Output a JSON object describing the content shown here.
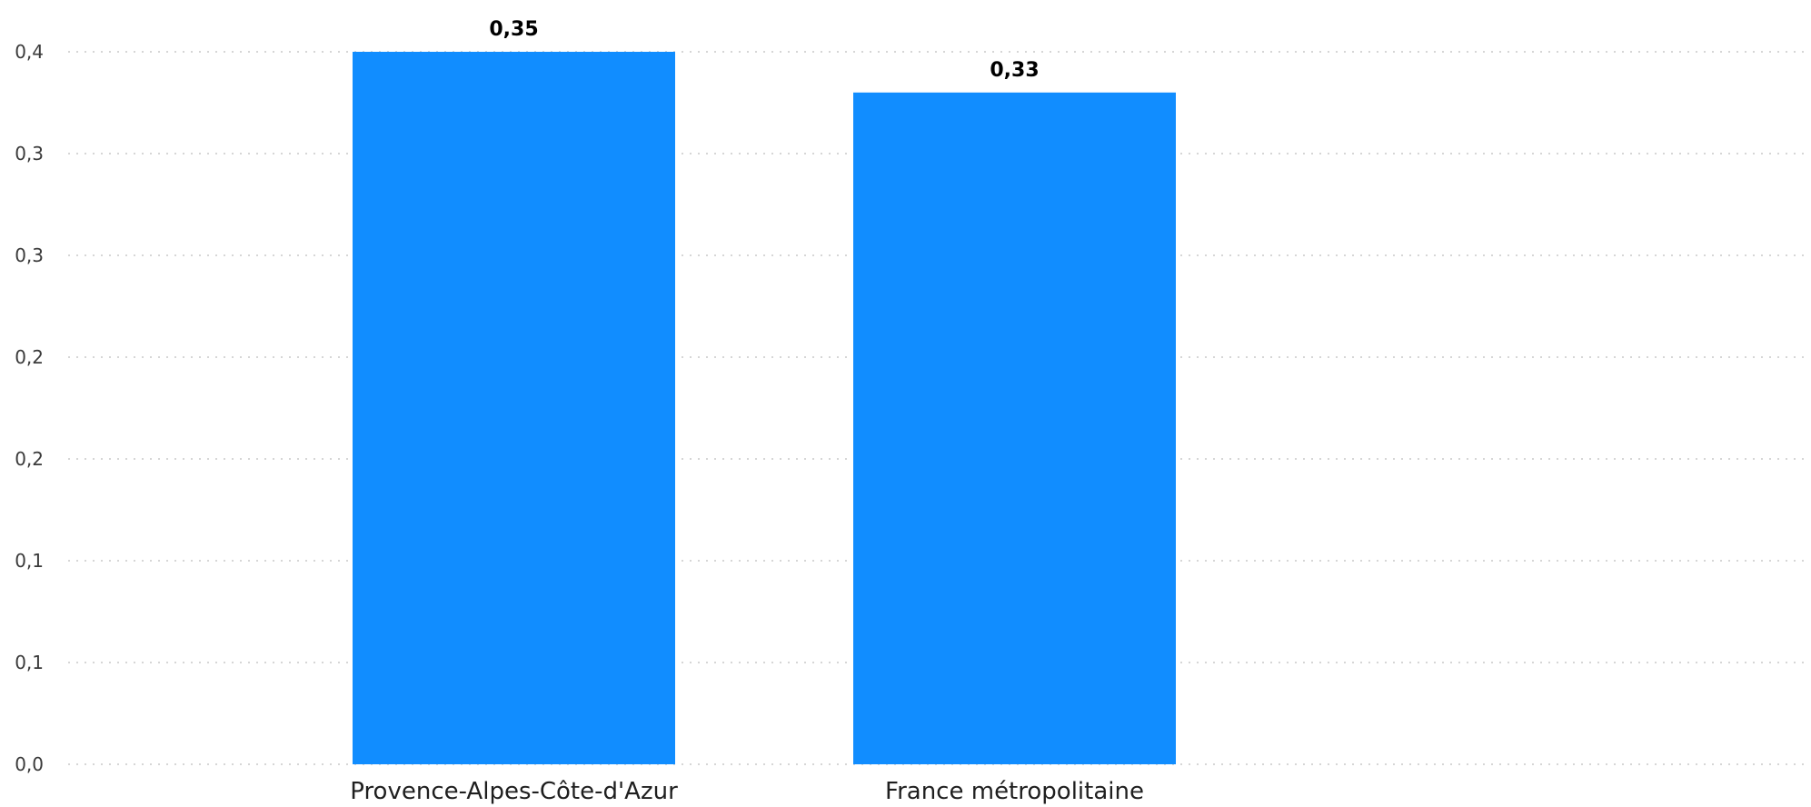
{
  "chart_data": {
    "type": "bar",
    "categories": [
      "Provence-Alpes-Côte-d'Azur",
      "France métropolitaine"
    ],
    "values": [
      0.35,
      0.33
    ],
    "value_labels": [
      "0,35",
      "0,33"
    ],
    "y_ticks": [
      0.0,
      0.05,
      0.1,
      0.15,
      0.2,
      0.25,
      0.3,
      0.35
    ],
    "y_tick_labels": [
      "0,0",
      "0,1",
      "0,1",
      "0,2",
      "0,2",
      "0,3",
      "0,3",
      "0,4"
    ],
    "ylim": [
      0,
      0.35
    ],
    "grid": true,
    "bar_color": "#118DFF"
  }
}
